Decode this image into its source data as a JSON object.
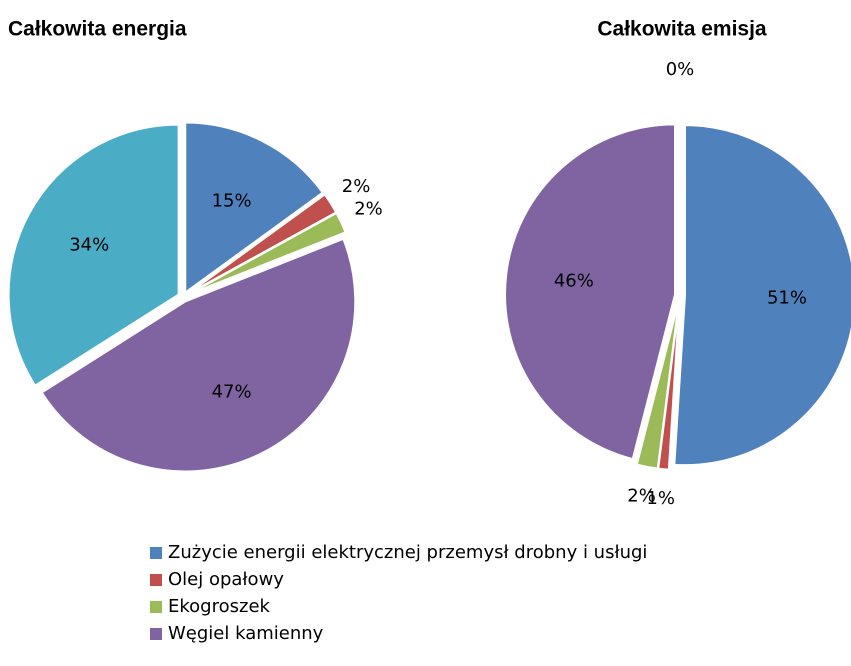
{
  "chart_data": [
    {
      "type": "pie",
      "title": "Całkowita energia",
      "categories": [
        "Zużycie energii elektrycznej przemysł drobny i usługi",
        "Olej opałowy",
        "Ekogroszek",
        "Węgiel kamienny",
        null
      ],
      "values": [
        15,
        2,
        2,
        47,
        34
      ],
      "value_labels": [
        "15%",
        "2%",
        "2%",
        "47%",
        "34%"
      ],
      "colors": [
        "#4f81bd",
        "#c0504d",
        "#9bbb59",
        "#8064a2",
        "#4bacc6"
      ]
    },
    {
      "type": "pie",
      "title": "Całkowita emisja",
      "categories": [
        "Zużycie energii elektrycznej przemysł drobny i usługi",
        "Olej opałowy",
        "Ekogroszek",
        "Węgiel kamienny",
        null
      ],
      "values": [
        51,
        1,
        2,
        46,
        0
      ],
      "value_labels": [
        "51%",
        "1%",
        "2%",
        "46%",
        "0%"
      ],
      "colors": [
        "#4f81bd",
        "#c0504d",
        "#9bbb59",
        "#8064a2",
        "#4bacc6"
      ]
    }
  ]
}
